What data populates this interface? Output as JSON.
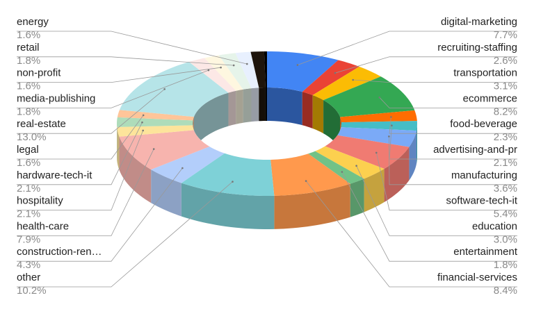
{
  "chart_data": {
    "type": "pie",
    "style": "3d-donut",
    "legend": "none",
    "slices": [
      {
        "name": "digital-marketing",
        "value": 7.7,
        "label": "7.7%",
        "color": "#4285f4"
      },
      {
        "name": "recruiting-staffing",
        "value": 2.6,
        "label": "2.6%",
        "color": "#ea4335"
      },
      {
        "name": "transportation",
        "value": 3.1,
        "label": "3.1%",
        "color": "#fbbc04"
      },
      {
        "name": "ecommerce",
        "value": 8.2,
        "label": "8.2%",
        "color": "#34a853"
      },
      {
        "name": "food-beverage",
        "value": 2.3,
        "label": "2.3%",
        "color": "#ff6d01"
      },
      {
        "name": "advertising-and-pr",
        "value": 2.1,
        "label": "2.1%",
        "color": "#46bdc6"
      },
      {
        "name": "manufacturing",
        "value": 3.6,
        "label": "3.6%",
        "color": "#7baaf7"
      },
      {
        "name": "software-tech-it",
        "value": 5.4,
        "label": "5.4%",
        "color": "#f07b72"
      },
      {
        "name": "education",
        "value": 3.0,
        "label": "3.0%",
        "color": "#fcd04f"
      },
      {
        "name": "entertainment",
        "value": 1.8,
        "label": "1.8%",
        "color": "#71c287"
      },
      {
        "name": "financial-services",
        "value": 8.4,
        "label": "8.4%",
        "color": "#ff994d"
      },
      {
        "name": "other",
        "value": 10.2,
        "label": "10.2%",
        "color": "#7ed1d7"
      },
      {
        "name": "construction-ren…",
        "value": 4.3,
        "label": "4.3%",
        "color": "#b3cefb"
      },
      {
        "name": "health-care",
        "value": 7.9,
        "label": "7.9%",
        "color": "#f7b4ae"
      },
      {
        "name": "hospitality",
        "value": 2.1,
        "label": "2.1%",
        "color": "#fde49b"
      },
      {
        "name": "hardware-tech-it",
        "value": 2.1,
        "label": "2.1%",
        "color": "#aedcba"
      },
      {
        "name": "legal",
        "value": 1.6,
        "label": "1.6%",
        "color": "#ffc599"
      },
      {
        "name": "real-estate",
        "value": 13.0,
        "label": "13.0%",
        "color": "#b6e4e8"
      },
      {
        "name": "media-publishing",
        "value": 1.8,
        "label": "1.8%",
        "color": "#fce8e6"
      },
      {
        "name": "non-profit",
        "value": 1.6,
        "label": "1.6%",
        "color": "#fef7e0"
      },
      {
        "name": "retail",
        "value": 1.8,
        "label": "1.8%",
        "color": "#e6f4ea"
      },
      {
        "name": "energy",
        "value": 1.6,
        "label": "1.6%",
        "color": "#e8f0fe"
      },
      {
        "name": "",
        "value": 1.4,
        "label": "",
        "color": "#1e150c"
      },
      {
        "name": "",
        "value": 0.3,
        "label": "",
        "color": "#000000"
      }
    ]
  }
}
